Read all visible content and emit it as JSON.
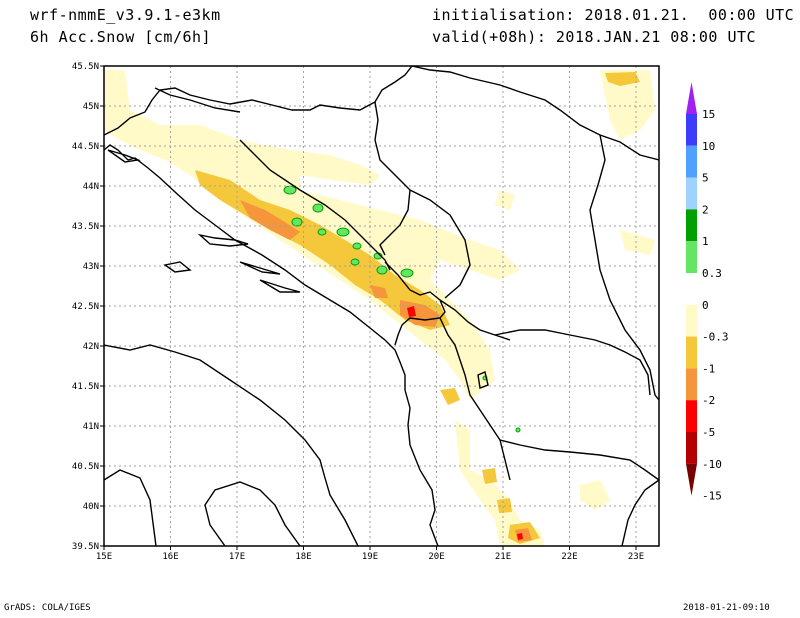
{
  "header": {
    "model": "wrf-nmmE_v3.9.1-e3km",
    "field": "6h Acc.Snow [cm/6h]",
    "init": "initialisation: 2018.01.21.  00:00 UTC",
    "valid": "valid(+08h): 2018.JAN.21 08:00 UTC"
  },
  "footer": {
    "credit": "GrADS: COLA/IGES",
    "timestamp": "2018-01-21-09:10"
  },
  "axes": {
    "lat_labels": [
      "45.5N",
      "45N",
      "44.5N",
      "44N",
      "43.5N",
      "43N",
      "42.5N",
      "42N",
      "41.5N",
      "41N",
      "40.5N",
      "40N",
      "39.5N"
    ],
    "lon_labels": [
      "15E",
      "16E",
      "17E",
      "18E",
      "19E",
      "20E",
      "21E",
      "22E",
      "23E"
    ]
  },
  "colorbar": {
    "labels": [
      "15",
      "10",
      "5",
      "2",
      "1",
      "0.3",
      "0",
      "-0.3",
      "-1",
      "-2",
      "-5",
      "-10",
      "-15"
    ],
    "colors": [
      "#a020f0",
      "#3c3cff",
      "#50a0ff",
      "#a0d2ff",
      "#00a000",
      "#64e664",
      "#ffffff",
      "#fffac8",
      "#f5c83c",
      "#f5963c",
      "#ff0000",
      "#b40000",
      "#780000"
    ]
  }
}
